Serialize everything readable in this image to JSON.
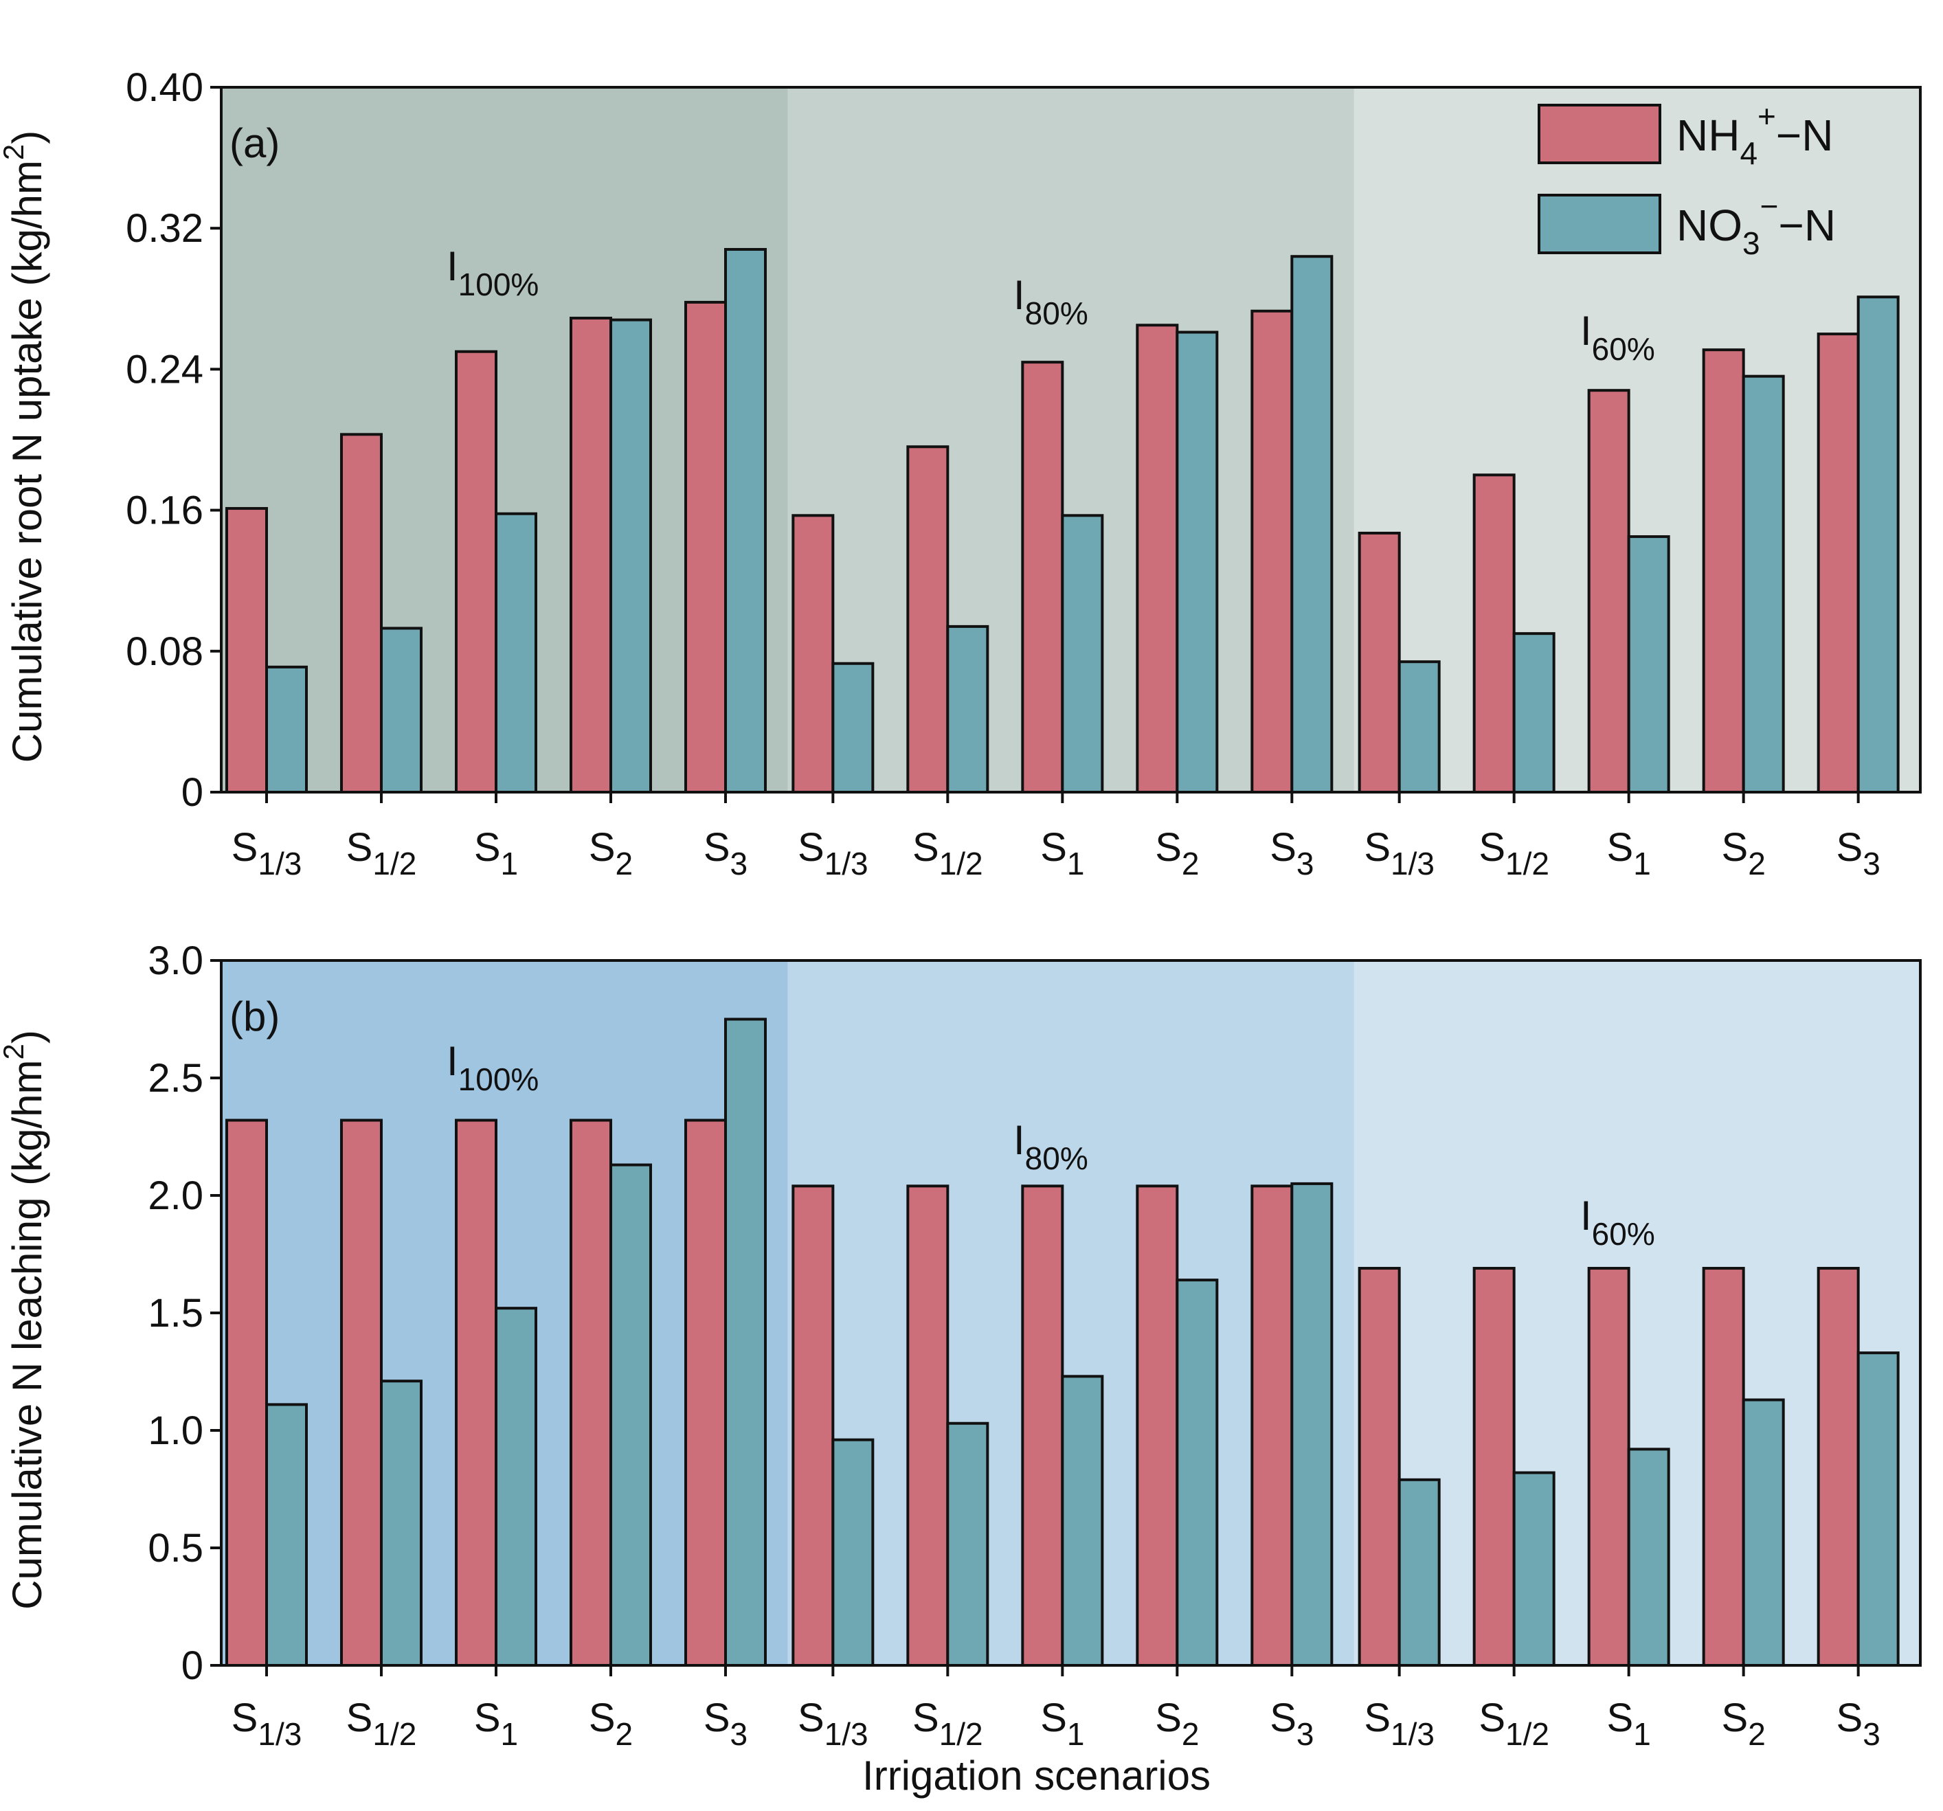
{
  "chart_data": [
    {
      "type": "bar",
      "panel_tag": "(a)",
      "ylabel": "Cumulative root N uptake (kg/hm²)",
      "ylabel_parts": {
        "main": "Cumulative root N uptake (kg/hm",
        "sup": "2",
        "close": ")"
      },
      "xlabel": "",
      "ylim": [
        0,
        0.4
      ],
      "yticks": [
        0,
        0.08,
        0.16,
        0.24,
        0.32,
        0.4
      ],
      "ytick_labels": [
        "0",
        "0.08",
        "0.16",
        "0.24",
        "0.32",
        "0.40"
      ],
      "groups": [
        {
          "label": "I100%",
          "label_base": "I",
          "label_sub": "100%",
          "background": "#b2c2bc"
        },
        {
          "label": "I80%",
          "label_base": "I",
          "label_sub": "80%",
          "background": "#c5d1cd"
        },
        {
          "label": "I60%",
          "label_base": "I",
          "label_sub": "60%",
          "background": "#d7e0dd"
        }
      ],
      "categories": [
        "S1/3",
        "S1/2",
        "S1",
        "S2",
        "S3"
      ],
      "category_parts": [
        [
          "S",
          "1/3"
        ],
        [
          "S",
          "1/2"
        ],
        [
          "S",
          "1"
        ],
        [
          "S",
          "2"
        ],
        [
          "S",
          "3"
        ]
      ],
      "series": [
        {
          "name": "NH4+−N",
          "color": "#cd6f7a",
          "values": [
            [
              0.161,
              0.203,
              0.25,
              0.269,
              0.278
            ],
            [
              0.157,
              0.196,
              0.244,
              0.265,
              0.273
            ],
            [
              0.147,
              0.18,
              0.228,
              0.251,
              0.26
            ]
          ]
        },
        {
          "name": "NO3−−N",
          "color": "#6fa8b3",
          "values": [
            [
              0.071,
              0.093,
              0.158,
              0.268,
              0.308
            ],
            [
              0.073,
              0.094,
              0.157,
              0.261,
              0.304
            ],
            [
              0.074,
              0.09,
              0.145,
              0.236,
              0.281
            ]
          ]
        }
      ],
      "legend": {
        "placement": "top-right",
        "entries": [
          {
            "text": "NH4+−N",
            "base": "NH",
            "sub": "4",
            "sup": "+",
            "tail": "−N",
            "color": "#cd6f7a"
          },
          {
            "text": "NO3−−N",
            "base": "NO",
            "sub": "3",
            "sup": "−",
            "tail": "−N",
            "color": "#6fa8b3"
          }
        ]
      }
    },
    {
      "type": "bar",
      "panel_tag": "(b)",
      "ylabel": "Cumulative N leaching (kg/hm²)",
      "ylabel_parts": {
        "main": "Cumulative N leaching (kg/hm",
        "sup": "2",
        "close": ")"
      },
      "xlabel": "Irrigation scenarios",
      "ylim": [
        0,
        3.0
      ],
      "yticks": [
        0,
        0.5,
        1.0,
        1.5,
        2.0,
        2.5,
        3.0
      ],
      "ytick_labels": [
        "0",
        "0.5",
        "1.0",
        "1.5",
        "2.0",
        "2.5",
        "3.0"
      ],
      "groups": [
        {
          "label": "I100%",
          "label_base": "I",
          "label_sub": "100%",
          "background": "#a0c5e1"
        },
        {
          "label": "I80%",
          "label_base": "I",
          "label_sub": "80%",
          "background": "#bcd7ea"
        },
        {
          "label": "I60%",
          "label_base": "I",
          "label_sub": "60%",
          "background": "#d2e3f0"
        }
      ],
      "categories": [
        "S1/3",
        "S1/2",
        "S1",
        "S2",
        "S3"
      ],
      "category_parts": [
        [
          "S",
          "1/3"
        ],
        [
          "S",
          "1/2"
        ],
        [
          "S",
          "1"
        ],
        [
          "S",
          "2"
        ],
        [
          "S",
          "3"
        ]
      ],
      "series": [
        {
          "name": "NH4+−N",
          "color": "#cd6f7a",
          "values": [
            [
              2.32,
              2.32,
              2.32,
              2.32,
              2.32
            ],
            [
              2.04,
              2.04,
              2.04,
              2.04,
              2.04
            ],
            [
              1.69,
              1.69,
              1.69,
              1.69,
              1.69
            ]
          ]
        },
        {
          "name": "NO3−−N",
          "color": "#6fa8b3",
          "values": [
            [
              1.11,
              1.21,
              1.52,
              2.13,
              2.75
            ],
            [
              0.96,
              1.03,
              1.23,
              1.64,
              2.05
            ],
            [
              0.79,
              0.82,
              0.92,
              1.13,
              1.33
            ]
          ]
        }
      ]
    }
  ]
}
